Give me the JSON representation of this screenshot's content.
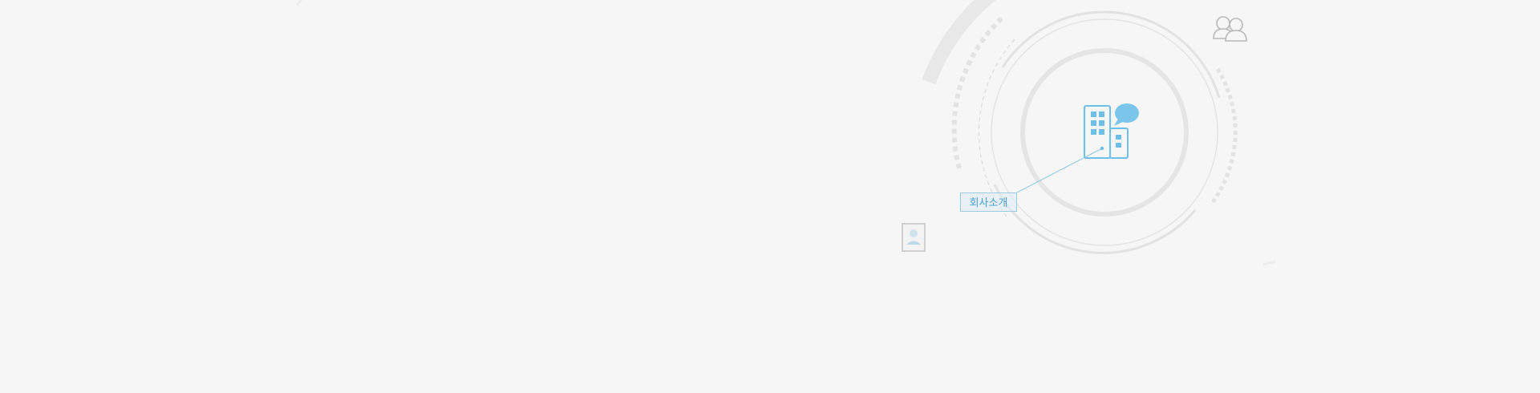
{
  "hero": {
    "company_intro_label": "회사소개"
  },
  "colors": {
    "background": "#f6f6f6",
    "ring": "#e6e6e6",
    "accent_blue": "#6ec0e8",
    "icon_gray": "#bdbdbd"
  },
  "icons": {
    "building": "building-icon",
    "chat": "speech-bubble-icon",
    "users": "users-icon",
    "profile": "profile-card-icon"
  }
}
